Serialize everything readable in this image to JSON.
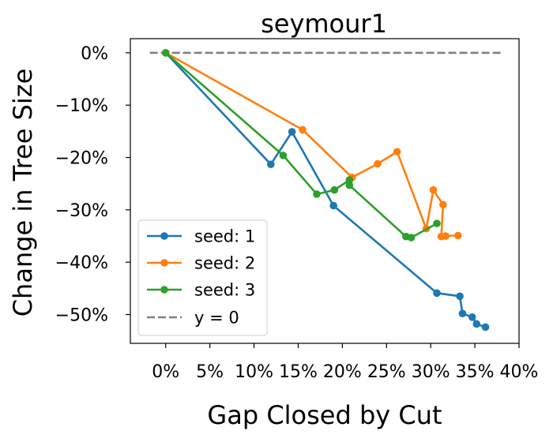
{
  "chart_data": {
    "type": "line",
    "title": "seymour1",
    "xlabel": "Gap Closed by Cut",
    "ylabel": "Change in Tree Size",
    "xlim": [
      -0.04,
      0.4
    ],
    "ylim": [
      -0.555,
      0.027
    ],
    "x_ticks": [
      0,
      0.05,
      0.1,
      0.15,
      0.2,
      0.25,
      0.3,
      0.35,
      0.4
    ],
    "x_tick_labels": [
      "0%",
      "5%",
      "10%",
      "15%",
      "20%",
      "25%",
      "30%",
      "35%",
      "40%"
    ],
    "y_ticks": [
      0,
      -0.1,
      -0.2,
      -0.3,
      -0.4,
      -0.5
    ],
    "y_tick_labels": [
      "0%",
      "−10%",
      "−20%",
      "−30%",
      "−40%",
      "−50%"
    ],
    "grid": false,
    "legend_position": "lower-left",
    "series": [
      {
        "name": "seed: 1",
        "color": "#1f77b4",
        "marker": "circle",
        "points": [
          [
            0.0,
            0.0
          ],
          [
            0.119,
            -0.213
          ],
          [
            0.143,
            -0.151
          ],
          [
            0.19,
            -0.292
          ],
          [
            0.307,
            -0.459
          ],
          [
            0.333,
            -0.465
          ],
          [
            0.336,
            -0.498
          ],
          [
            0.347,
            -0.505
          ],
          [
            0.352,
            -0.518
          ],
          [
            0.362,
            -0.524
          ]
        ]
      },
      {
        "name": "seed: 2",
        "color": "#ff7f0e",
        "marker": "circle",
        "points": [
          [
            0.0,
            0.0
          ],
          [
            0.155,
            -0.147
          ],
          [
            0.211,
            -0.238
          ],
          [
            0.24,
            -0.212
          ],
          [
            0.262,
            -0.189
          ],
          [
            0.295,
            -0.336
          ],
          [
            0.303,
            -0.262
          ],
          [
            0.314,
            -0.29
          ],
          [
            0.312,
            -0.351
          ],
          [
            0.317,
            -0.35
          ],
          [
            0.331,
            -0.349
          ]
        ]
      },
      {
        "name": "seed: 3",
        "color": "#2ca02c",
        "marker": "circle",
        "points": [
          [
            0.0,
            0.0
          ],
          [
            0.133,
            -0.196
          ],
          [
            0.171,
            -0.27
          ],
          [
            0.191,
            -0.262
          ],
          [
            0.208,
            -0.243
          ],
          [
            0.208,
            -0.253
          ],
          [
            0.272,
            -0.351
          ],
          [
            0.278,
            -0.353
          ],
          [
            0.307,
            -0.326
          ]
        ]
      },
      {
        "name": "y = 0",
        "color": "#808080",
        "style": "dashed",
        "points": [
          [
            -0.018,
            0.0
          ],
          [
            0.382,
            0.0
          ]
        ]
      }
    ]
  }
}
